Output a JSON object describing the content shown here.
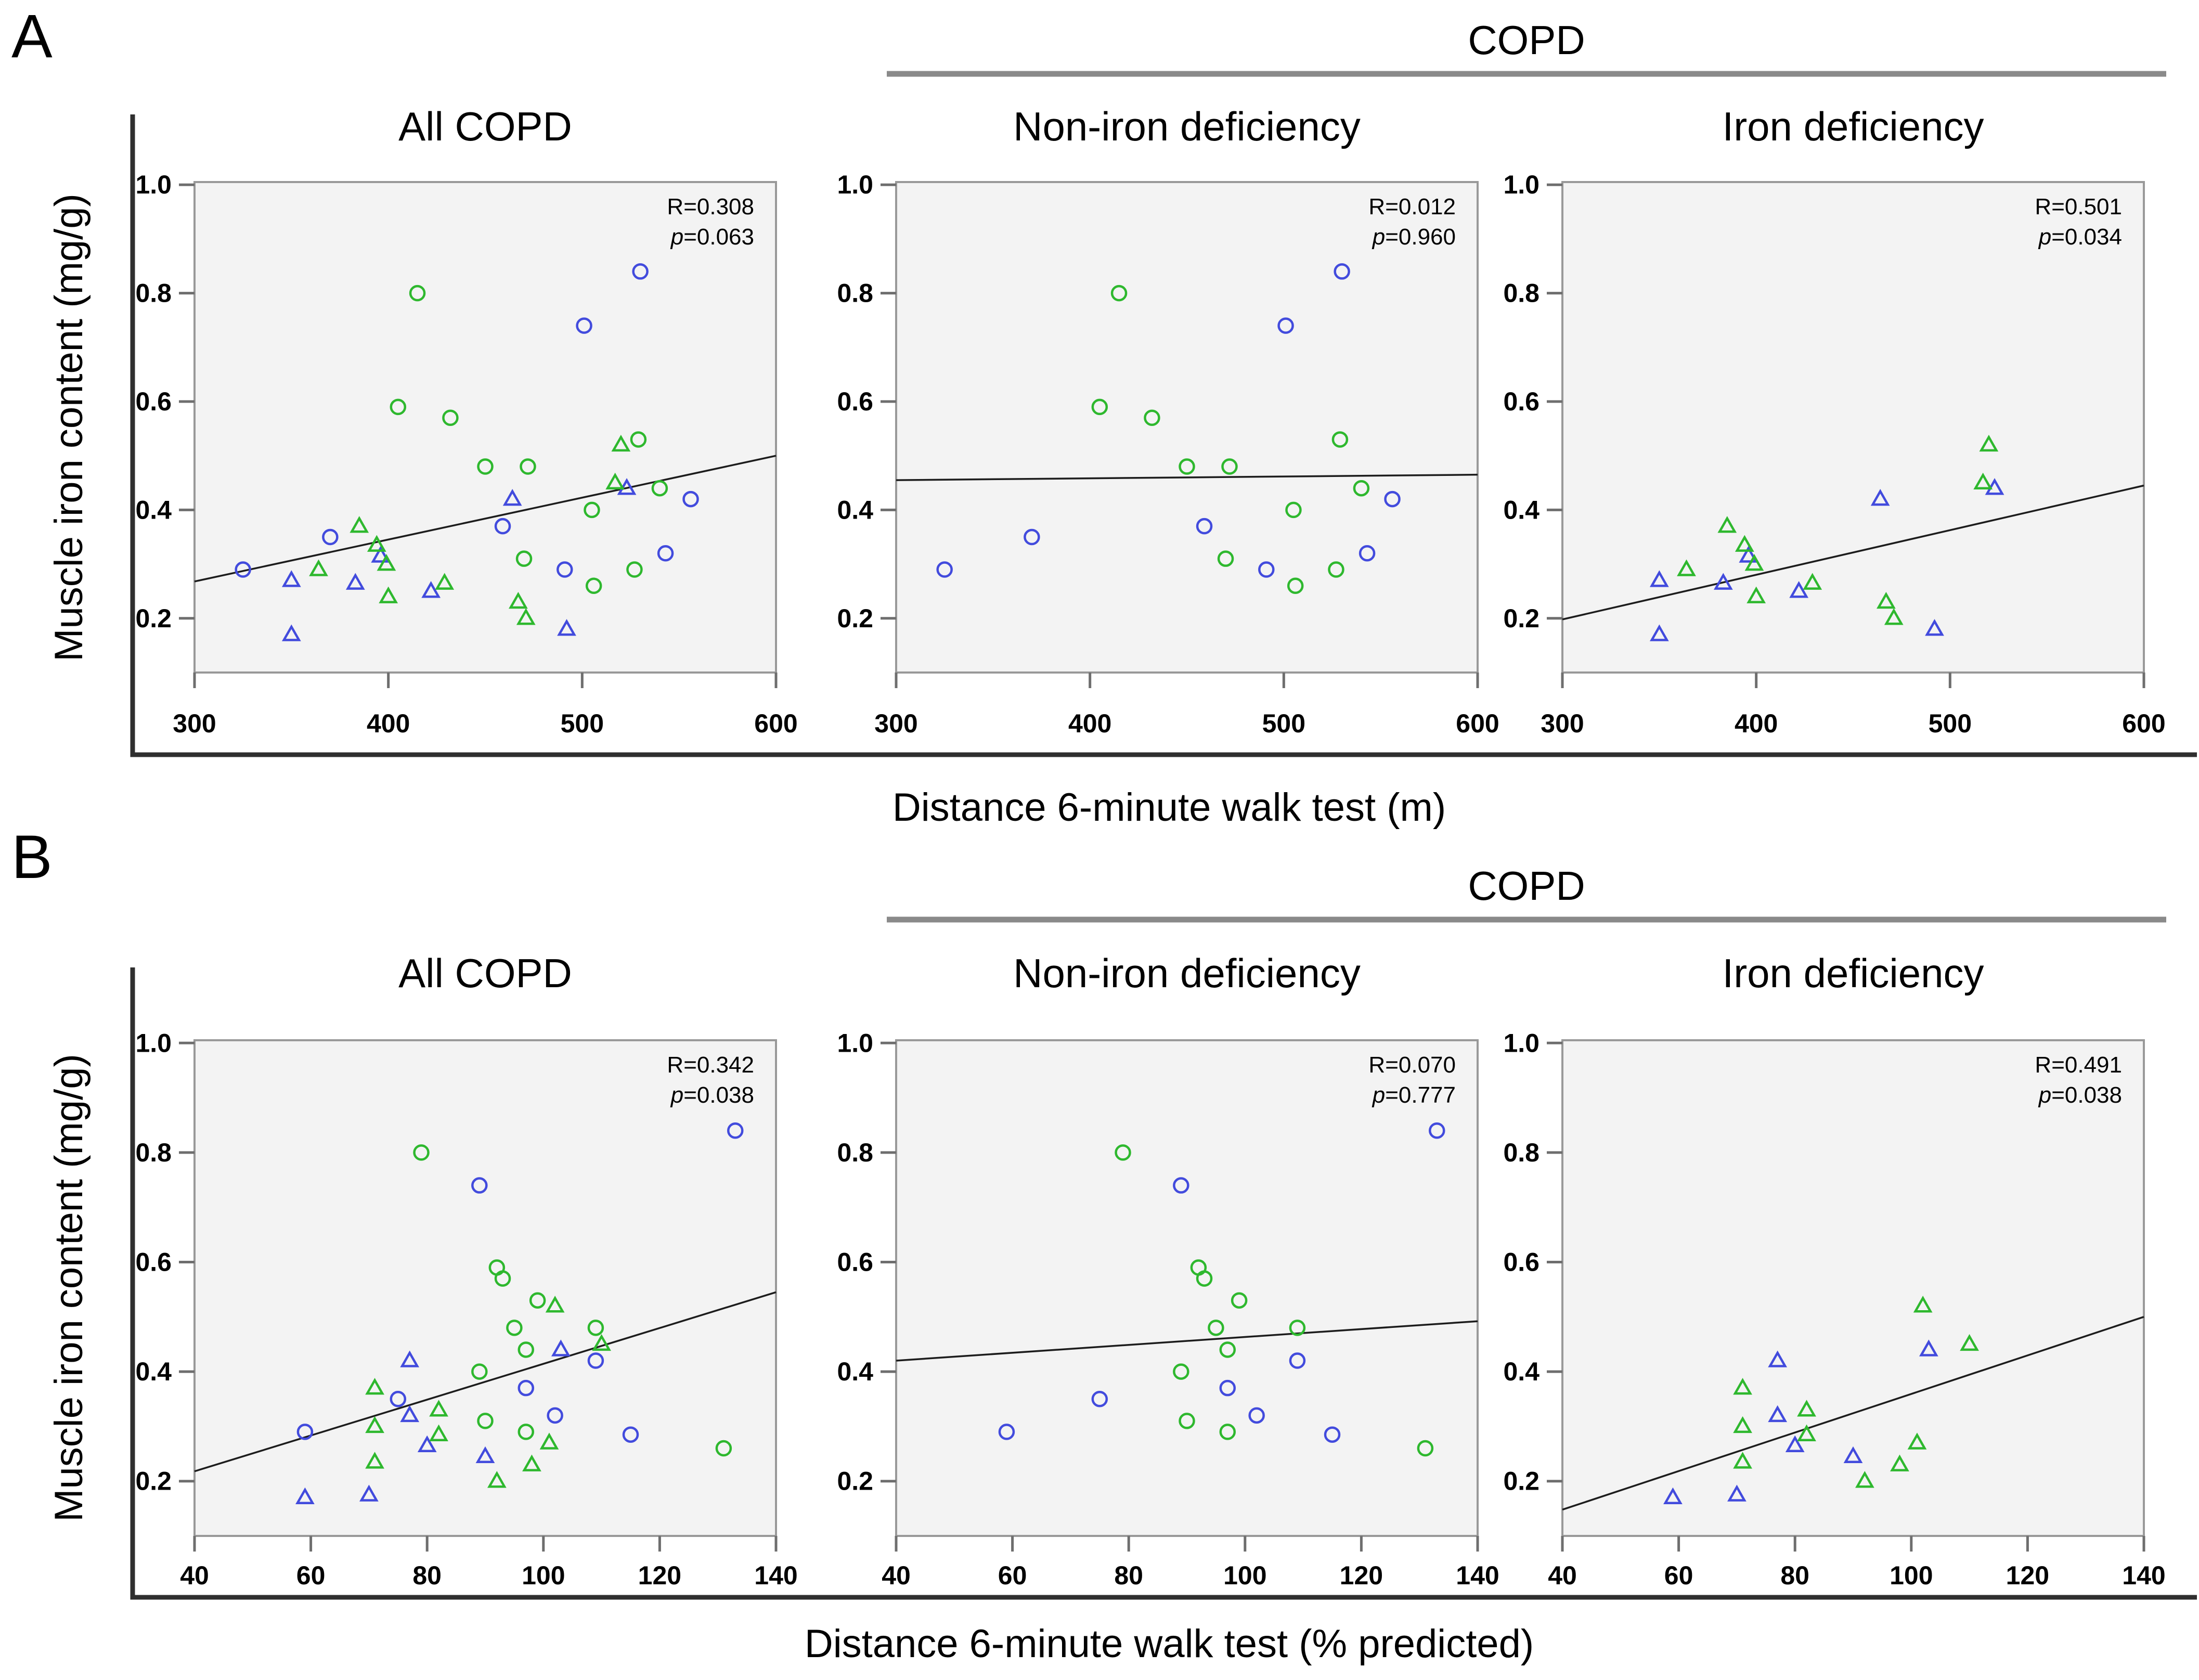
{
  "colors": {
    "blue": "#424bdd",
    "green": "#2eb82e",
    "plot_bg": "#f3f3f3",
    "plot_border": "#999999",
    "trend": "#1c1c1c",
    "frame": "#2f2f2f",
    "tick": "#6e6e6e",
    "underline": "#8a8a8a"
  },
  "chart_data": [
    {
      "type": "scatter",
      "panel": "A",
      "header": "COPD",
      "xlabel": "Distance 6-minute walk test (m)",
      "ylabel": "Muscle iron content (mg/g)",
      "xlim": [
        300,
        600
      ],
      "ylim": [
        0.1,
        1.005
      ],
      "xticks": [
        300,
        400,
        500,
        600
      ],
      "xtick_labels": [
        "300",
        "400",
        "500",
        "600"
      ],
      "yticks": [
        0.2,
        0.4,
        0.6,
        0.8,
        1.0
      ],
      "ytick_labels": [
        "0.2",
        "0.4",
        "0.6",
        "0.8",
        "1.0"
      ],
      "grid": false,
      "legend": "none",
      "series": [
        {
          "name": "non-iron-deficiency-blue",
          "marker": "circle",
          "color": "blue",
          "points": [
            [
              325,
              0.29
            ],
            [
              370,
              0.35
            ],
            [
              530,
              0.84
            ],
            [
              501,
              0.74
            ],
            [
              459,
              0.37
            ],
            [
              491,
              0.29
            ],
            [
              543,
              0.32
            ],
            [
              556,
              0.42
            ]
          ]
        },
        {
          "name": "non-iron-deficiency-green",
          "marker": "circle",
          "color": "green",
          "points": [
            [
              415,
              0.8
            ],
            [
              405,
              0.59
            ],
            [
              432,
              0.57
            ],
            [
              450,
              0.48
            ],
            [
              472,
              0.48
            ],
            [
              529,
              0.53
            ],
            [
              540,
              0.44
            ],
            [
              505,
              0.4
            ],
            [
              470,
              0.31
            ],
            [
              506,
              0.26
            ],
            [
              527,
              0.29
            ]
          ]
        },
        {
          "name": "iron-deficiency-blue",
          "marker": "triangle",
          "color": "blue",
          "points": [
            [
              350,
              0.27
            ],
            [
              350,
              0.17
            ],
            [
              383,
              0.265
            ],
            [
              396,
              0.315
            ],
            [
              422,
              0.25
            ],
            [
              464,
              0.42
            ],
            [
              523,
              0.44
            ],
            [
              492,
              0.18
            ]
          ]
        },
        {
          "name": "iron-deficiency-green",
          "marker": "triangle",
          "color": "green",
          "points": [
            [
              385,
              0.37
            ],
            [
              394,
              0.335
            ],
            [
              399,
              0.3
            ],
            [
              364,
              0.29
            ],
            [
              400,
              0.24
            ],
            [
              429,
              0.265
            ],
            [
              467,
              0.23
            ],
            [
              471,
              0.2
            ],
            [
              520,
              0.52
            ],
            [
              517,
              0.45
            ]
          ]
        }
      ],
      "subplots": [
        {
          "title": "All COPD",
          "r_label": "R=0.308",
          "p_label": "p=0.063",
          "markers": [
            "circle",
            "triangle"
          ],
          "trend": {
            "x1": 300,
            "y1": 0.268,
            "x2": 600,
            "y2": 0.5
          }
        },
        {
          "title": "Non-iron deficiency",
          "r_label": "R=0.012",
          "p_label": "p=0.960",
          "markers": [
            "circle"
          ],
          "trend": {
            "x1": 300,
            "y1": 0.455,
            "x2": 600,
            "y2": 0.465
          }
        },
        {
          "title": "Iron deficiency",
          "r_label": "R=0.501",
          "p_label": "p=0.034",
          "markers": [
            "triangle"
          ],
          "trend": {
            "x1": 300,
            "y1": 0.198,
            "x2": 600,
            "y2": 0.445
          }
        }
      ]
    },
    {
      "type": "scatter",
      "panel": "B",
      "header": "COPD",
      "xlabel": "Distance 6-minute walk test (% predicted)",
      "ylabel": "Muscle iron content (mg/g)",
      "xlim": [
        40,
        140
      ],
      "ylim": [
        0.1,
        1.005
      ],
      "xticks": [
        40,
        60,
        80,
        100,
        120,
        140
      ],
      "xtick_labels": [
        "40",
        "60",
        "80",
        "100",
        "120",
        "140"
      ],
      "yticks": [
        0.2,
        0.4,
        0.6,
        0.8,
        1.0
      ],
      "ytick_labels": [
        "0.2",
        "0.4",
        "0.6",
        "0.8",
        "1.0"
      ],
      "grid": false,
      "legend": "none",
      "series": [
        {
          "name": "non-iron-deficiency-blue",
          "marker": "circle",
          "color": "blue",
          "points": [
            [
              133,
              0.84
            ],
            [
              89,
              0.74
            ],
            [
              97,
              0.37
            ],
            [
              75,
              0.35
            ],
            [
              102,
              0.32
            ],
            [
              59,
              0.29
            ],
            [
              115,
              0.285
            ],
            [
              109,
              0.42
            ]
          ]
        },
        {
          "name": "non-iron-deficiency-green",
          "marker": "circle",
          "color": "green",
          "points": [
            [
              79,
              0.8
            ],
            [
              92,
              0.59
            ],
            [
              93,
              0.57
            ],
            [
              99,
              0.53
            ],
            [
              95,
              0.48
            ],
            [
              109,
              0.48
            ],
            [
              97,
              0.44
            ],
            [
              89,
              0.4
            ],
            [
              90,
              0.31
            ],
            [
              97,
              0.29
            ],
            [
              131,
              0.26
            ]
          ]
        },
        {
          "name": "iron-deficiency-blue",
          "marker": "triangle",
          "color": "blue",
          "points": [
            [
              77,
              0.42
            ],
            [
              77,
              0.32
            ],
            [
              80,
              0.265
            ],
            [
              90,
              0.245
            ],
            [
              103,
              0.44
            ],
            [
              70,
              0.175
            ],
            [
              59,
              0.17
            ]
          ]
        },
        {
          "name": "iron-deficiency-green",
          "marker": "triangle",
          "color": "green",
          "points": [
            [
              71,
              0.37
            ],
            [
              82,
              0.33
            ],
            [
              71,
              0.3
            ],
            [
              82,
              0.285
            ],
            [
              101,
              0.27
            ],
            [
              71,
              0.235
            ],
            [
              98,
              0.23
            ],
            [
              92,
              0.2
            ],
            [
              102,
              0.52
            ],
            [
              110,
              0.45
            ]
          ]
        }
      ],
      "subplots": [
        {
          "title": "All COPD",
          "r_label": "R=0.342",
          "p_label": "p=0.038",
          "markers": [
            "circle",
            "triangle"
          ],
          "trend": {
            "x1": 40,
            "y1": 0.218,
            "x2": 140,
            "y2": 0.545
          }
        },
        {
          "title": "Non-iron deficiency",
          "r_label": "R=0.070",
          "p_label": "p=0.777",
          "markers": [
            "circle"
          ],
          "trend": {
            "x1": 40,
            "y1": 0.42,
            "x2": 140,
            "y2": 0.492
          }
        },
        {
          "title": "Iron deficiency",
          "r_label": "R=0.491",
          "p_label": "p=0.038",
          "markers": [
            "triangle"
          ],
          "trend": {
            "x1": 40,
            "y1": 0.148,
            "x2": 140,
            "y2": 0.5
          }
        }
      ]
    }
  ]
}
